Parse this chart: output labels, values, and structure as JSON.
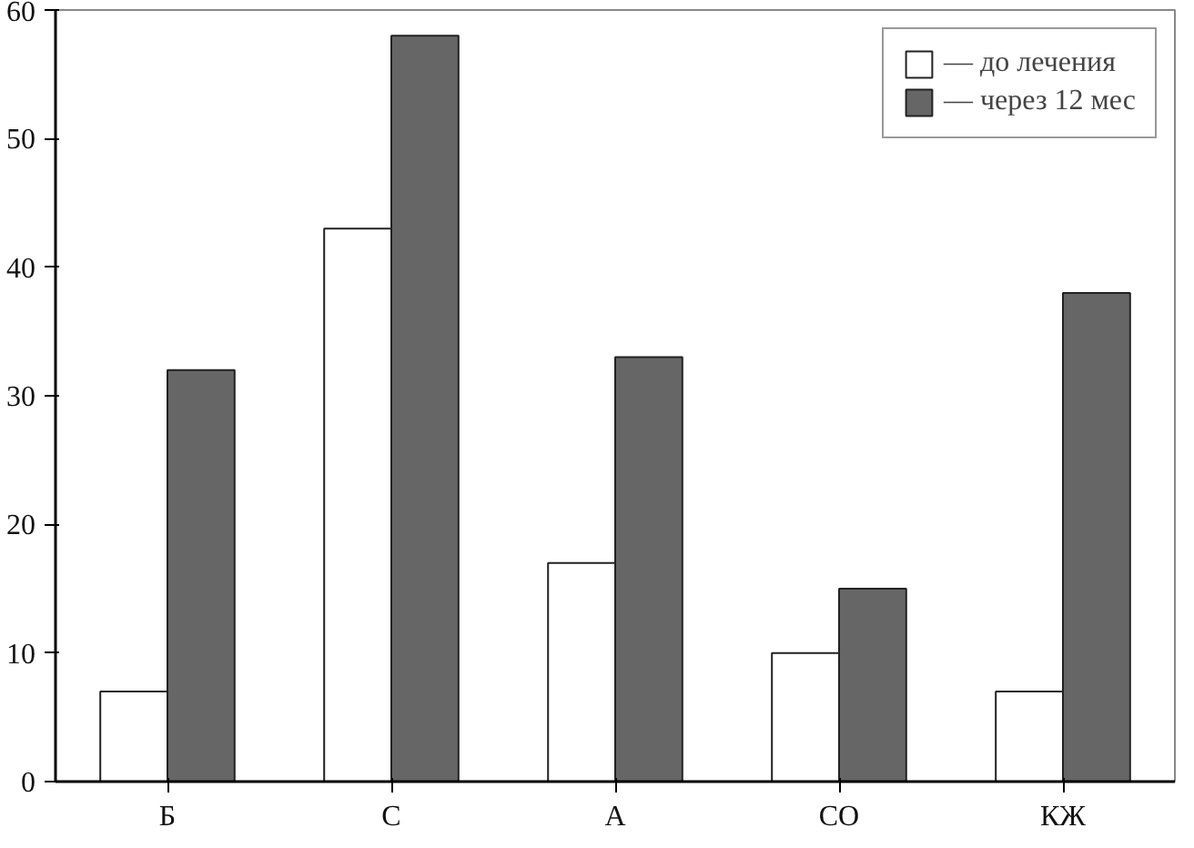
{
  "chart_data": {
    "type": "bar",
    "categories": [
      "Б",
      "С",
      "А",
      "СО",
      "КЖ"
    ],
    "series": [
      {
        "name": "— до лечения",
        "color": "#ffffff",
        "values": [
          7,
          43,
          17,
          10,
          7
        ]
      },
      {
        "name": "— через 12 мес",
        "color": "#666666",
        "values": [
          32,
          58,
          33,
          15,
          38
        ]
      }
    ],
    "ylim": [
      0,
      60
    ],
    "yticks": [
      0,
      10,
      20,
      30,
      40,
      50,
      60
    ],
    "grid": false,
    "legend": "top right"
  }
}
